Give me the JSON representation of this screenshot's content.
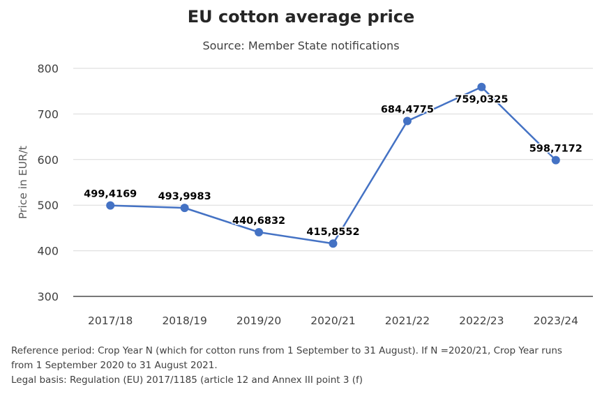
{
  "chart_data": {
    "type": "line",
    "title": "EU cotton average price",
    "subtitle": "Source: Member State notifications",
    "xlabel": "",
    "ylabel": "Price in EUR/t",
    "ylim": [
      300,
      800
    ],
    "yticks": [
      "300",
      "400",
      "500",
      "600",
      "700",
      "800"
    ],
    "grid": true,
    "categories": [
      "2017/18",
      "2018/19",
      "2019/20",
      "2020/21",
      "2021/22",
      "2022/23",
      "2023/24"
    ],
    "series": [
      {
        "name": "EU cotton average price",
        "color": "#4472C4",
        "values": [
          499.4169,
          493.9983,
          440.6832,
          415.8552,
          684.4775,
          759.0325,
          598.7172
        ],
        "labels": [
          "499,4169",
          "493,9983",
          "440,6832",
          "415,8552",
          "684,4775",
          "759,0325",
          "598,7172"
        ]
      }
    ]
  },
  "notes": {
    "line1": "Reference period: Crop Year N (which for cotton runs from 1 September to 31 August). If N =2020/21, Crop Year runs",
    "line2": "from 1 September 2020 to 31 August 2021.",
    "line3": "Legal basis: Regulation (EU) 2017/1185 (article 12 and Annex III point 3 (f)"
  }
}
